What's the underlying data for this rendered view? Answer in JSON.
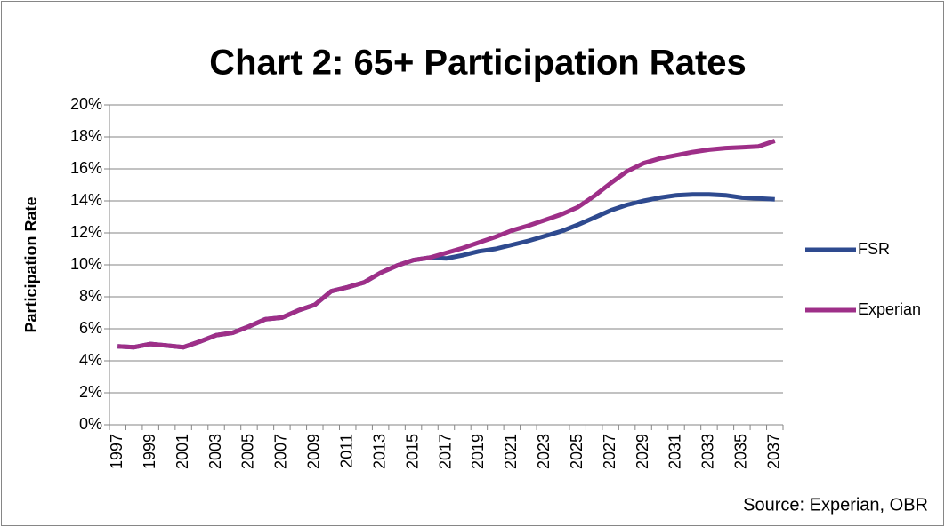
{
  "chart_data": {
    "type": "line",
    "title": "Chart 2: 65+ Participation Rates",
    "y_label": "Participation Rate",
    "source": "Source: Experian, OBR",
    "categories": [
      "1997",
      null,
      "1999",
      null,
      "2001",
      null,
      "2003",
      null,
      "2005",
      null,
      "2007",
      null,
      "2009",
      null,
      "2011",
      null,
      "2013",
      null,
      "2015",
      null,
      "2017",
      null,
      "2019",
      null,
      "2021",
      null,
      "2023",
      null,
      "2025",
      null,
      "2027",
      null,
      "2029",
      null,
      "2031",
      null,
      "2033",
      null,
      "2035",
      null,
      "2037"
    ],
    "series": [
      {
        "name": "FSR",
        "color": "#2e4a8f",
        "values": [
          4.9,
          4.85,
          5.05,
          4.95,
          4.85,
          5.2,
          5.6,
          5.75,
          6.15,
          6.6,
          6.7,
          7.15,
          7.5,
          8.35,
          8.6,
          8.9,
          9.5,
          9.95,
          10.3,
          10.45,
          10.4,
          10.6,
          10.85,
          11.0,
          11.25,
          11.5,
          11.8,
          12.1,
          12.5,
          12.95,
          13.4,
          13.75,
          14.0,
          14.2,
          14.35,
          14.4,
          14.4,
          14.35,
          14.2,
          14.15,
          14.1
        ]
      },
      {
        "name": "Experian",
        "color": "#9e2f88",
        "values": [
          4.9,
          4.85,
          5.05,
          4.95,
          4.85,
          5.2,
          5.6,
          5.75,
          6.15,
          6.6,
          6.7,
          7.15,
          7.5,
          8.35,
          8.6,
          8.9,
          9.5,
          9.95,
          10.3,
          10.45,
          10.75,
          11.05,
          11.4,
          11.75,
          12.15,
          12.45,
          12.8,
          13.15,
          13.6,
          14.3,
          15.1,
          15.85,
          16.35,
          16.65,
          16.85,
          17.05,
          17.2,
          17.3,
          17.35,
          17.4,
          17.75
        ]
      }
    ],
    "ylim": [
      0,
      20
    ],
    "yticks": [
      {
        "value": 0,
        "label": "0%"
      },
      {
        "value": 2,
        "label": "2%"
      },
      {
        "value": 4,
        "label": "4%"
      },
      {
        "value": 6,
        "label": "6%"
      },
      {
        "value": 8,
        "label": "8%"
      },
      {
        "value": 10,
        "label": "10%"
      },
      {
        "value": 12,
        "label": "12%"
      },
      {
        "value": 14,
        "label": "14%"
      },
      {
        "value": 16,
        "label": "16%"
      },
      {
        "value": 18,
        "label": "18%"
      },
      {
        "value": 20,
        "label": "20%"
      }
    ],
    "grid": true,
    "legend": "right"
  }
}
